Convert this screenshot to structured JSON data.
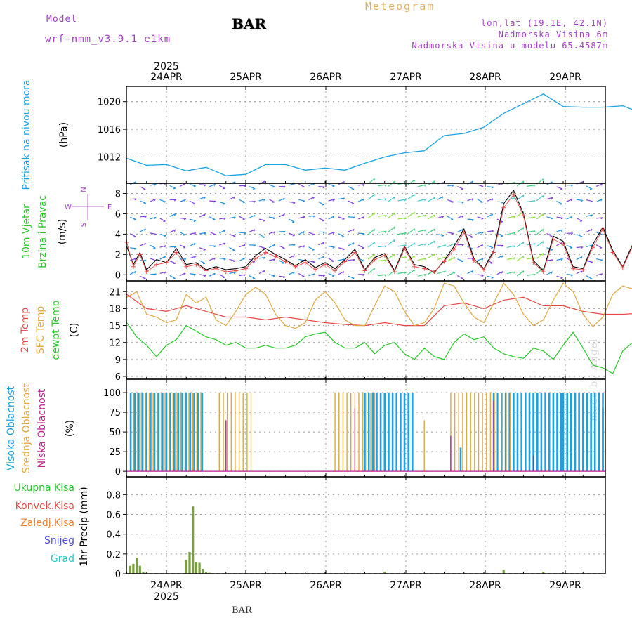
{
  "header": {
    "model_label": "Model",
    "model_name": "wrf−nmm_v3.9.1 e1km",
    "title": "BAR",
    "meteogram": "Meteogram",
    "lonlat": "lon,lat (19.1E, 42.1N)",
    "elevation": "Nadmorska Visina 6m",
    "model_elevation": "Nadmorska Visina u modelu 65.4587m"
  },
  "footer": {
    "station": "BAR",
    "credit": "made by Angel"
  },
  "time_axis": {
    "year_label": "2025",
    "days": [
      "24APR",
      "25APR",
      "26APR",
      "27APR",
      "28APR",
      "29APR"
    ],
    "start_hour_before_first_tick": 12
  },
  "colors": {
    "pressure": "#1aa2e6",
    "temp2m": "#e84848",
    "sfc_temp": "#e0a840",
    "dewpt": "#28c828",
    "wind_speed": "#000000",
    "wind_gust": "#e84848",
    "cloud_high": "#1aa2e6",
    "cloud_mid": "#e0a840",
    "cloud_low": "#c02090",
    "precip_total": "#28c828",
    "precip_conv": "#e84848",
    "precip_frozen": "#f08030",
    "snow": "#5050e0",
    "graupel": "#28c8c8"
  },
  "chart_data": [
    {
      "type": "line",
      "panel": "pressure",
      "ylabel": [
        "Pritisak na nivou mora",
        "(hPa)"
      ],
      "yticks": [
        1012,
        1016,
        1020
      ],
      "ylim": [
        1008.2,
        1022.2
      ],
      "grid": true,
      "series": [
        {
          "x": [
            -12,
            -6,
            0,
            6,
            12,
            18,
            24,
            30,
            36,
            42,
            48,
            54,
            60,
            66,
            72,
            78,
            84,
            90,
            96,
            102,
            108,
            114,
            120,
            126,
            132,
            138,
            144
          ],
          "values": [
            1011.8,
            1010.8,
            1010.9,
            1010.0,
            1010.5,
            1009.3,
            1009.5,
            1010.9,
            1010.9,
            1010.1,
            1010.4,
            1010.1,
            1011.1,
            1012.0,
            1012.6,
            1012.9,
            1015.1,
            1015.4,
            1016.3,
            1018.3,
            1019.7,
            1021.1,
            1019.3,
            1019.2,
            1019.2,
            1019.4,
            1018.3
          ]
        }
      ]
    },
    {
      "type": "line",
      "panel": "wind",
      "ylabel": [
        "10m Vjetar",
        "Brzina i Pravac",
        "(m/s)"
      ],
      "compass": [
        "N",
        "E",
        "S",
        "W"
      ],
      "yticks": [
        0,
        2,
        4,
        6,
        8
      ],
      "ylim": [
        -0.6,
        9
      ],
      "grid": true,
      "series": [
        {
          "name": "wind_speed",
          "x": [
            -12,
            -10,
            -8,
            -6,
            -3,
            0,
            3,
            6,
            9,
            12,
            15,
            18,
            21,
            24,
            27,
            30,
            33,
            36,
            39,
            42,
            45,
            48,
            51,
            54,
            57,
            60,
            63,
            66,
            69,
            72,
            75,
            78,
            81,
            84,
            87,
            90,
            93,
            96,
            99,
            102,
            105,
            108,
            111,
            114,
            117,
            120,
            123,
            126,
            129,
            132,
            135,
            138,
            141,
            144
          ],
          "values": [
            2.8,
            1.0,
            2.2,
            0.5,
            1.5,
            1.2,
            2.6,
            1.0,
            1.2,
            0.5,
            0.8,
            0.5,
            0.6,
            0.8,
            1.9,
            2.6,
            2.0,
            1.5,
            0.9,
            1.5,
            0.7,
            1.2,
            0.6,
            1.5,
            2.5,
            0.5,
            1.7,
            2.1,
            0.4,
            2.8,
            1.0,
            0.8,
            0.2,
            1.4,
            2.8,
            4.5,
            1.6,
            0.6,
            2.4,
            7.0,
            8.3,
            6.0,
            1.4,
            0.4,
            3.8,
            3.3,
            0.8,
            0.6,
            3.0,
            4.7,
            2.4,
            0.8,
            3.0,
            3.6
          ]
        },
        {
          "name": "wind_gust",
          "x": [
            -12,
            -10,
            -8,
            -6,
            -3,
            0,
            3,
            6,
            9,
            12,
            15,
            18,
            21,
            24,
            27,
            30,
            33,
            36,
            39,
            42,
            45,
            48,
            51,
            54,
            57,
            60,
            63,
            66,
            69,
            72,
            75,
            78,
            81,
            84,
            87,
            90,
            93,
            96,
            99,
            102,
            105,
            108,
            111,
            114,
            117,
            120,
            123,
            126,
            129,
            132,
            135,
            138,
            141,
            144
          ],
          "values": [
            3.2,
            0.8,
            2.0,
            0.3,
            1.0,
            1.2,
            2.2,
            0.8,
            1.0,
            0.4,
            0.6,
            0.3,
            0.4,
            0.6,
            1.6,
            2.2,
            1.8,
            1.3,
            0.8,
            1.2,
            0.5,
            1.0,
            0.4,
            1.3,
            2.2,
            0.4,
            1.5,
            1.9,
            0.3,
            2.6,
            0.8,
            0.6,
            0.3,
            1.3,
            2.5,
            4.2,
            1.4,
            0.5,
            2.2,
            6.6,
            7.9,
            5.8,
            1.2,
            0.3,
            3.5,
            3.0,
            0.6,
            0.5,
            2.7,
            4.5,
            2.2,
            0.7,
            2.8,
            3.3
          ]
        }
      ]
    },
    {
      "type": "line",
      "panel": "temperature",
      "ylabel": [
        "2m Temp",
        "SFC Temp",
        "dewpt Temp",
        "(C)"
      ],
      "yticks": [
        6,
        9,
        12,
        15,
        18,
        21
      ],
      "ylim": [
        5.5,
        22.9
      ],
      "grid": true,
      "series": [
        {
          "name": "2m Temp",
          "x": [
            -12,
            -6,
            0,
            6,
            12,
            18,
            24,
            30,
            36,
            42,
            48,
            54,
            60,
            66,
            72,
            78,
            84,
            90,
            96,
            102,
            108,
            114,
            120,
            126,
            132,
            138,
            144
          ],
          "values": [
            20.5,
            18.0,
            17.5,
            18.5,
            17.5,
            16.5,
            16.5,
            16.0,
            16.5,
            16.0,
            15.5,
            15.2,
            15.0,
            15.5,
            15.0,
            15.0,
            18.5,
            19.0,
            18.0,
            19.5,
            20.0,
            18.5,
            18.5,
            17.5,
            17.0,
            17.0,
            17.2
          ]
        },
        {
          "name": "SFC Temp",
          "x": [
            -12,
            -9,
            -6,
            -3,
            0,
            3,
            6,
            9,
            12,
            15,
            18,
            21,
            24,
            27,
            30,
            33,
            36,
            39,
            42,
            45,
            48,
            51,
            54,
            57,
            60,
            63,
            66,
            69,
            72,
            75,
            78,
            81,
            84,
            87,
            90,
            93,
            96,
            99,
            102,
            105,
            108,
            111,
            114,
            117,
            120,
            123,
            126,
            129,
            132,
            135,
            138,
            141,
            144
          ],
          "values": [
            20.0,
            21.0,
            17.0,
            16.5,
            15.5,
            16.0,
            20.5,
            19.0,
            20.0,
            16.0,
            15.0,
            17.5,
            20.5,
            21.8,
            20.5,
            17.0,
            15.0,
            14.5,
            15.5,
            19.5,
            21.0,
            19.0,
            16.0,
            15.0,
            15.0,
            18.5,
            22.0,
            21.0,
            17.5,
            15.0,
            15.5,
            18.0,
            22.5,
            22.0,
            19.0,
            16.5,
            15.5,
            19.0,
            22.5,
            20.5,
            17.0,
            15.0,
            16.0,
            19.5,
            22.5,
            21.0,
            17.0,
            14.8,
            16.5,
            20.5,
            22.0,
            21.5,
            21.8
          ]
        },
        {
          "name": "dewpt Temp",
          "x": [
            -12,
            -9,
            -6,
            -3,
            0,
            3,
            6,
            9,
            12,
            15,
            18,
            21,
            24,
            27,
            30,
            33,
            36,
            39,
            42,
            45,
            48,
            51,
            54,
            57,
            60,
            63,
            66,
            69,
            72,
            75,
            78,
            81,
            84,
            87,
            90,
            93,
            96,
            99,
            102,
            105,
            108,
            111,
            114,
            117,
            120,
            123,
            126,
            129,
            132,
            135,
            138,
            141,
            144
          ],
          "values": [
            15.5,
            13.0,
            11.5,
            9.5,
            11.5,
            12.5,
            15.0,
            14.0,
            13.0,
            12.5,
            11.5,
            12.0,
            11.0,
            11.0,
            11.5,
            11.0,
            11.0,
            11.5,
            13.0,
            13.5,
            13.8,
            12.0,
            11.0,
            11.0,
            12.0,
            10.0,
            11.5,
            12.0,
            10.0,
            9.0,
            11.0,
            9.5,
            9.0,
            12.0,
            13.5,
            12.5,
            13.0,
            11.0,
            10.0,
            9.5,
            9.2,
            11.0,
            10.5,
            9.0,
            11.5,
            13.8,
            11.0,
            8.0,
            7.5,
            6.5,
            10.5,
            12.0,
            11.2
          ]
        }
      ]
    },
    {
      "type": "bar",
      "panel": "cloud",
      "ylabel": [
        "Visoka Oblacnost",
        "Srednja Oblacnost",
        "Niska Oblacnost",
        "(%)"
      ],
      "yticks": [
        0,
        25,
        50,
        75,
        100
      ],
      "ylim": [
        -7,
        117
      ],
      "grid": true,
      "series": [
        {
          "name": "Visoka Oblacnost",
          "segments": [
            [
              -12,
              11.3,
              100
            ],
            [
              60,
              75,
              100
            ],
            [
              87.5,
              87.6,
              0
            ],
            [
              89,
              90,
              30
            ],
            [
              99,
              120,
              100
            ],
            [
              120,
              132,
              100
            ],
            [
              132,
              138,
              80
            ],
            [
              138,
              142,
              80
            ]
          ]
        },
        {
          "name": "Srednja Oblacnost",
          "segments": [
            [
              -10,
              11,
              100
            ],
            [
              16,
              26.5,
              100
            ],
            [
              26.5,
              36.5,
              0
            ],
            [
              51,
              64,
              100
            ],
            [
              78,
              78.5,
              65
            ],
            [
              84,
              86,
              0
            ],
            [
              86,
              105,
              100
            ]
          ]
        },
        {
          "name": "Niska Oblacnost",
          "spikes": [
            [
              18,
              65
            ],
            [
              57,
              80
            ],
            [
              86,
              45
            ],
            [
              99,
              90
            ],
            [
              111,
              20
            ]
          ]
        }
      ]
    },
    {
      "type": "bar",
      "panel": "precip",
      "ylabel": [
        "1hr Precip (mm)"
      ],
      "legend": [
        "Ukupna Kisa",
        "Konvek.Kisa",
        "Zaledj.Kisa",
        "Snijeg",
        "Grad"
      ],
      "yticks": [
        0,
        0.2,
        0.4,
        0.6,
        0.8
      ],
      "ylim": [
        0,
        0.98
      ],
      "grid": true,
      "series": [
        {
          "name": "Ukupna Kisa",
          "x": [
            -11,
            -10,
            -9,
            -8,
            -7,
            -6,
            6,
            7,
            8,
            9,
            10,
            11,
            12,
            13,
            66,
            102,
            114
          ],
          "values": [
            0.08,
            0.1,
            0.16,
            0.08,
            0.02,
            0.01,
            0.14,
            0.22,
            0.68,
            0.12,
            0.11,
            0.05,
            0.02,
            0.01,
            0.02,
            0.04,
            0.02
          ]
        }
      ]
    }
  ]
}
